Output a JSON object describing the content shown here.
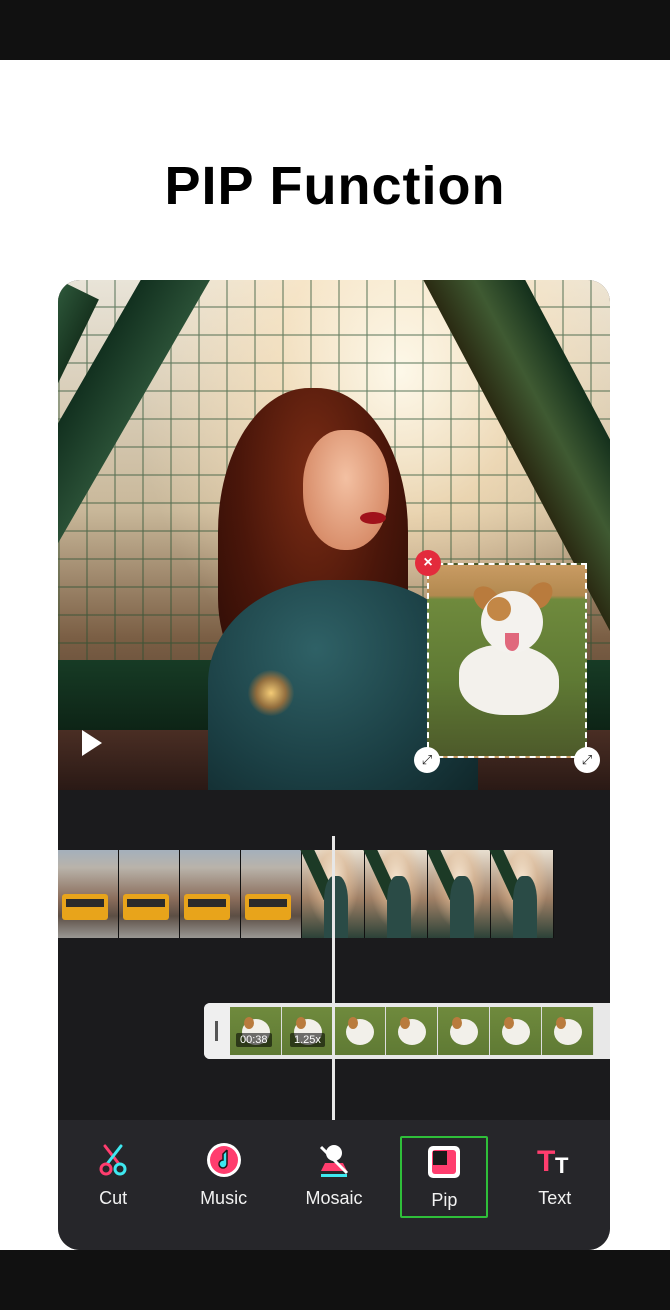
{
  "headline": "PIP Function",
  "timeline": {
    "pip_clip_time": "00:38",
    "pip_clip_speed": "1.25x"
  },
  "toolbar": {
    "items": [
      {
        "label": "Cut",
        "icon": "scissors-icon"
      },
      {
        "label": "Music",
        "icon": "music-note-icon"
      },
      {
        "label": "Mosaic",
        "icon": "mosaic-icon"
      },
      {
        "label": "Pip",
        "icon": "pip-icon",
        "active": true
      },
      {
        "label": "Text",
        "icon": "text-icon"
      }
    ]
  },
  "colors": {
    "active_border": "#2fbf3a",
    "close_button": "#e32b3c",
    "toolbar_bg": "#26262a",
    "timeline_bg": "#1b1b1d"
  }
}
